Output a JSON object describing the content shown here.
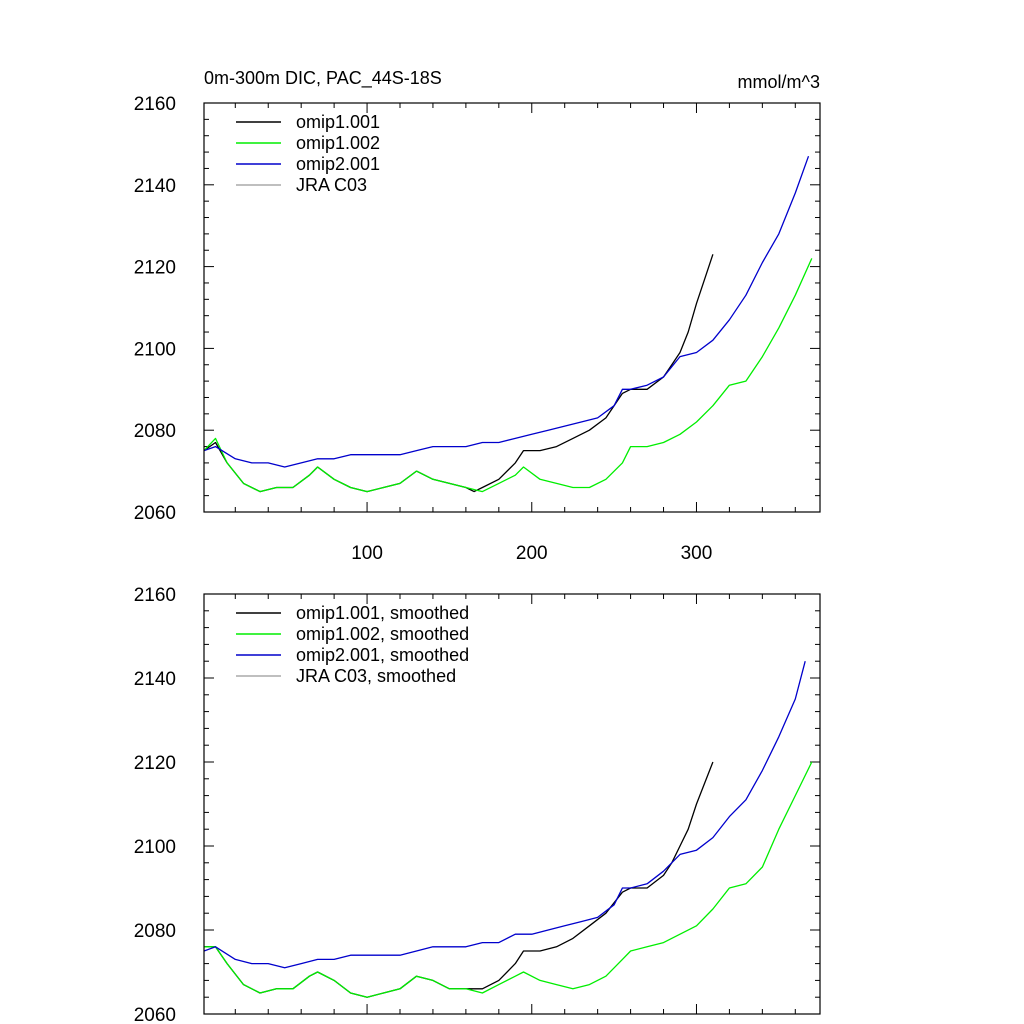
{
  "chart_data": [
    {
      "type": "line",
      "title": "0m-300m DIC, PAC_44S-18S",
      "units": "mmol/m^3",
      "xlim": [
        1,
        375
      ],
      "ylim": [
        2060,
        2160
      ],
      "xticks": [
        100,
        200,
        300
      ],
      "xticklabels": [
        "100",
        "200",
        "300"
      ],
      "yticks": [
        2060,
        2080,
        2100,
        2120,
        2140,
        2160
      ],
      "yticklabels": [
        "2060",
        "2080",
        "2100",
        "2120",
        "2140",
        "2160"
      ],
      "legend_position": "top-left",
      "series": [
        {
          "name": "omip1.001",
          "color": "#000000",
          "points": [
            [
              1,
              2075
            ],
            [
              8,
              2077
            ],
            [
              15,
              2072
            ],
            [
              25,
              2067
            ],
            [
              35,
              2065
            ],
            [
              45,
              2066
            ],
            [
              55,
              2066
            ],
            [
              65,
              2069
            ],
            [
              70,
              2071
            ],
            [
              80,
              2068
            ],
            [
              90,
              2066
            ],
            [
              100,
              2065
            ],
            [
              110,
              2066
            ],
            [
              120,
              2067
            ],
            [
              130,
              2070
            ],
            [
              140,
              2068
            ],
            [
              150,
              2067
            ],
            [
              160,
              2066
            ],
            [
              165,
              2065
            ],
            [
              170,
              2066
            ],
            [
              180,
              2068
            ],
            [
              190,
              2072
            ],
            [
              195,
              2075
            ],
            [
              205,
              2075
            ],
            [
              215,
              2076
            ],
            [
              225,
              2078
            ],
            [
              235,
              2080
            ],
            [
              245,
              2083
            ],
            [
              255,
              2089
            ],
            [
              260,
              2090
            ],
            [
              270,
              2090
            ],
            [
              280,
              2093
            ],
            [
              285,
              2096
            ],
            [
              290,
              2099
            ],
            [
              295,
              2104
            ],
            [
              300,
              2111
            ],
            [
              305,
              2117
            ],
            [
              310,
              2123
            ]
          ]
        },
        {
          "name": "omip1.002",
          "color": "#00ee00",
          "points": [
            [
              1,
              2075
            ],
            [
              8,
              2078
            ],
            [
              15,
              2072
            ],
            [
              25,
              2067
            ],
            [
              35,
              2065
            ],
            [
              45,
              2066
            ],
            [
              55,
              2066
            ],
            [
              65,
              2069
            ],
            [
              70,
              2071
            ],
            [
              80,
              2068
            ],
            [
              90,
              2066
            ],
            [
              100,
              2065
            ],
            [
              110,
              2066
            ],
            [
              120,
              2067
            ],
            [
              130,
              2070
            ],
            [
              140,
              2068
            ],
            [
              150,
              2067
            ],
            [
              160,
              2066
            ],
            [
              170,
              2065
            ],
            [
              180,
              2067
            ],
            [
              190,
              2069
            ],
            [
              195,
              2071
            ],
            [
              205,
              2068
            ],
            [
              215,
              2067
            ],
            [
              225,
              2066
            ],
            [
              235,
              2066
            ],
            [
              245,
              2068
            ],
            [
              255,
              2072
            ],
            [
              260,
              2076
            ],
            [
              270,
              2076
            ],
            [
              280,
              2077
            ],
            [
              290,
              2079
            ],
            [
              300,
              2082
            ],
            [
              310,
              2086
            ],
            [
              320,
              2091
            ],
            [
              330,
              2092
            ],
            [
              340,
              2098
            ],
            [
              350,
              2105
            ],
            [
              360,
              2113
            ],
            [
              370,
              2122
            ]
          ]
        },
        {
          "name": "omip2.001",
          "color": "#0000cc",
          "points": [
            [
              1,
              2075
            ],
            [
              8,
              2076
            ],
            [
              20,
              2073
            ],
            [
              30,
              2072
            ],
            [
              40,
              2072
            ],
            [
              50,
              2071
            ],
            [
              60,
              2072
            ],
            [
              70,
              2073
            ],
            [
              80,
              2073
            ],
            [
              90,
              2074
            ],
            [
              100,
              2074
            ],
            [
              110,
              2074
            ],
            [
              120,
              2074
            ],
            [
              130,
              2075
            ],
            [
              140,
              2076
            ],
            [
              150,
              2076
            ],
            [
              160,
              2076
            ],
            [
              170,
              2077
            ],
            [
              180,
              2077
            ],
            [
              190,
              2078
            ],
            [
              200,
              2079
            ],
            [
              210,
              2080
            ],
            [
              220,
              2081
            ],
            [
              230,
              2082
            ],
            [
              240,
              2083
            ],
            [
              250,
              2086
            ],
            [
              255,
              2090
            ],
            [
              260,
              2090
            ],
            [
              270,
              2091
            ],
            [
              280,
              2093
            ],
            [
              290,
              2098
            ],
            [
              300,
              2099
            ],
            [
              310,
              2102
            ],
            [
              320,
              2107
            ],
            [
              330,
              2113
            ],
            [
              340,
              2121
            ],
            [
              350,
              2128
            ],
            [
              360,
              2138
            ],
            [
              368,
              2147
            ]
          ]
        },
        {
          "name": "JRA C03",
          "color": "#aaaaaa",
          "points": []
        }
      ]
    },
    {
      "type": "line",
      "title": "",
      "units": "",
      "xlim": [
        1,
        375
      ],
      "ylim": [
        2060,
        2160
      ],
      "xticks": [
        100,
        200,
        300
      ],
      "xticklabels": [],
      "yticks": [
        2060,
        2080,
        2100,
        2120,
        2140,
        2160
      ],
      "yticklabels": [
        "2060",
        "2080",
        "2100",
        "2120",
        "2140",
        "2160"
      ],
      "legend_position": "top-left",
      "series": [
        {
          "name": "omip1.001, smoothed",
          "color": "#000000",
          "points": [
            [
              1,
              2076
            ],
            [
              8,
              2076
            ],
            [
              15,
              2072
            ],
            [
              25,
              2067
            ],
            [
              35,
              2065
            ],
            [
              45,
              2066
            ],
            [
              55,
              2066
            ],
            [
              65,
              2069
            ],
            [
              70,
              2070
            ],
            [
              80,
              2068
            ],
            [
              90,
              2065
            ],
            [
              100,
              2064
            ],
            [
              110,
              2065
            ],
            [
              120,
              2066
            ],
            [
              130,
              2069
            ],
            [
              140,
              2068
            ],
            [
              150,
              2066
            ],
            [
              160,
              2066
            ],
            [
              170,
              2066
            ],
            [
              180,
              2068
            ],
            [
              190,
              2072
            ],
            [
              195,
              2075
            ],
            [
              205,
              2075
            ],
            [
              215,
              2076
            ],
            [
              225,
              2078
            ],
            [
              235,
              2081
            ],
            [
              245,
              2084
            ],
            [
              255,
              2089
            ],
            [
              260,
              2090
            ],
            [
              270,
              2090
            ],
            [
              280,
              2093
            ],
            [
              285,
              2096
            ],
            [
              290,
              2100
            ],
            [
              295,
              2104
            ],
            [
              300,
              2110
            ],
            [
              305,
              2115
            ],
            [
              310,
              2120
            ]
          ]
        },
        {
          "name": "omip1.002, smoothed",
          "color": "#00ee00",
          "points": [
            [
              1,
              2076
            ],
            [
              8,
              2076
            ],
            [
              15,
              2072
            ],
            [
              25,
              2067
            ],
            [
              35,
              2065
            ],
            [
              45,
              2066
            ],
            [
              55,
              2066
            ],
            [
              65,
              2069
            ],
            [
              70,
              2070
            ],
            [
              80,
              2068
            ],
            [
              90,
              2065
            ],
            [
              100,
              2064
            ],
            [
              110,
              2065
            ],
            [
              120,
              2066
            ],
            [
              130,
              2069
            ],
            [
              140,
              2068
            ],
            [
              150,
              2066
            ],
            [
              160,
              2066
            ],
            [
              170,
              2065
            ],
            [
              180,
              2067
            ],
            [
              190,
              2069
            ],
            [
              195,
              2070
            ],
            [
              205,
              2068
            ],
            [
              215,
              2067
            ],
            [
              225,
              2066
            ],
            [
              235,
              2067
            ],
            [
              245,
              2069
            ],
            [
              255,
              2073
            ],
            [
              260,
              2075
            ],
            [
              270,
              2076
            ],
            [
              280,
              2077
            ],
            [
              290,
              2079
            ],
            [
              300,
              2081
            ],
            [
              310,
              2085
            ],
            [
              320,
              2090
            ],
            [
              330,
              2091
            ],
            [
              340,
              2095
            ],
            [
              350,
              2104
            ],
            [
              360,
              2112
            ],
            [
              370,
              2120
            ]
          ]
        },
        {
          "name": "omip2.001, smoothed",
          "color": "#0000cc",
          "points": [
            [
              1,
              2075
            ],
            [
              8,
              2076
            ],
            [
              20,
              2073
            ],
            [
              30,
              2072
            ],
            [
              40,
              2072
            ],
            [
              50,
              2071
            ],
            [
              60,
              2072
            ],
            [
              70,
              2073
            ],
            [
              80,
              2073
            ],
            [
              90,
              2074
            ],
            [
              100,
              2074
            ],
            [
              110,
              2074
            ],
            [
              120,
              2074
            ],
            [
              130,
              2075
            ],
            [
              140,
              2076
            ],
            [
              150,
              2076
            ],
            [
              160,
              2076
            ],
            [
              170,
              2077
            ],
            [
              180,
              2077
            ],
            [
              190,
              2079
            ],
            [
              200,
              2079
            ],
            [
              210,
              2080
            ],
            [
              220,
              2081
            ],
            [
              230,
              2082
            ],
            [
              240,
              2083
            ],
            [
              250,
              2086
            ],
            [
              255,
              2090
            ],
            [
              260,
              2090
            ],
            [
              270,
              2091
            ],
            [
              280,
              2094
            ],
            [
              290,
              2098
            ],
            [
              300,
              2099
            ],
            [
              310,
              2102
            ],
            [
              320,
              2107
            ],
            [
              330,
              2111
            ],
            [
              340,
              2118
            ],
            [
              350,
              2126
            ],
            [
              360,
              2135
            ],
            [
              366,
              2144
            ]
          ]
        },
        {
          "name": "JRA C03, smoothed",
          "color": "#aaaaaa",
          "points": []
        }
      ]
    }
  ]
}
